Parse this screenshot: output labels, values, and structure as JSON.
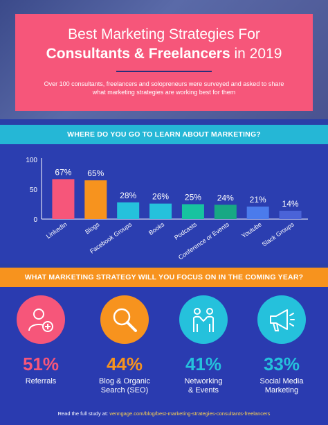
{
  "header": {
    "title_line1": "Best Marketing Strategies For",
    "title_bold": "Consultants & Freelancers",
    "title_tail": " in 2019",
    "subtitle": "Over 100 consultants, freelancers and solopreneurs were surveyed and asked to share what marketing strategies are working best for them"
  },
  "section1": {
    "heading": "WHERE DO YOU GO TO LEARN ABOUT MARKETING?"
  },
  "section2": {
    "heading": "WHAT MARKETING STRATEGY WILL YOU FOCUS ON IN THE COMING YEAR?"
  },
  "chart_data": {
    "type": "bar",
    "categories": [
      "LinkedIn",
      "Blogs",
      "Facebook Groups",
      "Books",
      "Podcasts",
      "Conference or Events",
      "Youtube",
      "Slack Groups"
    ],
    "values": [
      67,
      65,
      28,
      26,
      25,
      24,
      21,
      14
    ],
    "value_labels": [
      "67%",
      "65%",
      "28%",
      "26%",
      "25%",
      "24%",
      "21%",
      "14%"
    ],
    "colors": [
      "#f6567a",
      "#f7931e",
      "#25c1dc",
      "#25c1dc",
      "#17c3a0",
      "#17a884",
      "#4b7bec",
      "#4a63d8"
    ],
    "yticks": [
      "0",
      "50",
      "100"
    ],
    "ylim": [
      0,
      100
    ],
    "title": "",
    "xlabel": "",
    "ylabel": ""
  },
  "strategies": [
    {
      "pct": "51%",
      "label_line1": "Referrals",
      "label_line2": "",
      "color": "#f6567a",
      "icon": "add-user-icon"
    },
    {
      "pct": "44%",
      "label_line1": "Blog & Organic",
      "label_line2": "Search (SEO)",
      "color": "#f7931e",
      "icon": "search-icon"
    },
    {
      "pct": "41%",
      "label_line1": "Networking",
      "label_line2": "& Events",
      "color": "#25c1dc",
      "icon": "handshake-icon"
    },
    {
      "pct": "33%",
      "label_line1": "Social Media",
      "label_line2": "Marketing",
      "color": "#25c1dc",
      "icon": "megaphone-icon"
    }
  ],
  "footer": {
    "prefix": "Read the full study at: ",
    "url": "venngage.com/blog/best-marketing-strategies-consultants-freelancers"
  }
}
